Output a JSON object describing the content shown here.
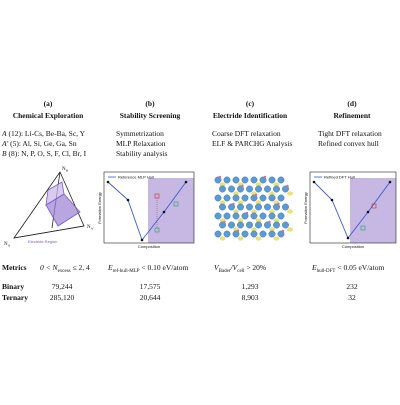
{
  "panels": [
    {
      "letter": "(a)",
      "title": "Chemical Exploration",
      "lines": [
        [
          "A",
          " (12): Li-Cs, Be-Ba, Sc, Y"
        ],
        [
          "A′",
          " (5): Al, Si, Ge, Ga, Sn"
        ],
        [
          "B",
          " (8): N, P, O, S, F, Cl, Br, I"
        ]
      ],
      "inset": {
        "vertex_top": [
          "N",
          "B"
        ],
        "vertex_right": [
          "N",
          "A′"
        ],
        "vertex_left": [
          "N",
          "A"
        ],
        "region": "Electride Region"
      },
      "metric": [
        "0 < N",
        "excess",
        " ≤ 2, 4"
      ],
      "binary": "79,244",
      "ternary": "285,120"
    },
    {
      "letter": "(b)",
      "title": "Stability Screening",
      "lines": [
        "Symmetrization",
        "MLP Relaxation",
        "Stability analysis"
      ],
      "inset": {
        "legend": "Reference MLP Hull",
        "ylabel": "Formation Energy",
        "xlabel": "Composition"
      },
      "metric": [
        "E",
        "ref-hull-MLP",
        " < 0.10 eV/atom"
      ],
      "binary": "17,575",
      "ternary": "20,644"
    },
    {
      "letter": "(c)",
      "title": "Electride Identification",
      "lines": [
        "Coarse DFT relaxation",
        "ELF & PARCHG Analysis"
      ],
      "metric": [
        "V",
        "Bader",
        "/V",
        "cell",
        " > 20%"
      ],
      "binary": "1,293",
      "ternary": "8,903"
    },
    {
      "letter": "(d)",
      "title": "Refinement",
      "lines": [
        "Tight DFT relaxation",
        "Refined convex hull"
      ],
      "inset": {
        "legend": "Refined DFT Hull",
        "ylabel": "Formation Energy",
        "xlabel": "Composition"
      },
      "metric": [
        "E",
        "hull-DFT",
        " < 0.05 eV/atom"
      ],
      "binary": "232",
      "ternary": "32"
    }
  ],
  "rows": {
    "metrics": "Metrics",
    "binary": "Binary",
    "ternary": "Ternary"
  }
}
